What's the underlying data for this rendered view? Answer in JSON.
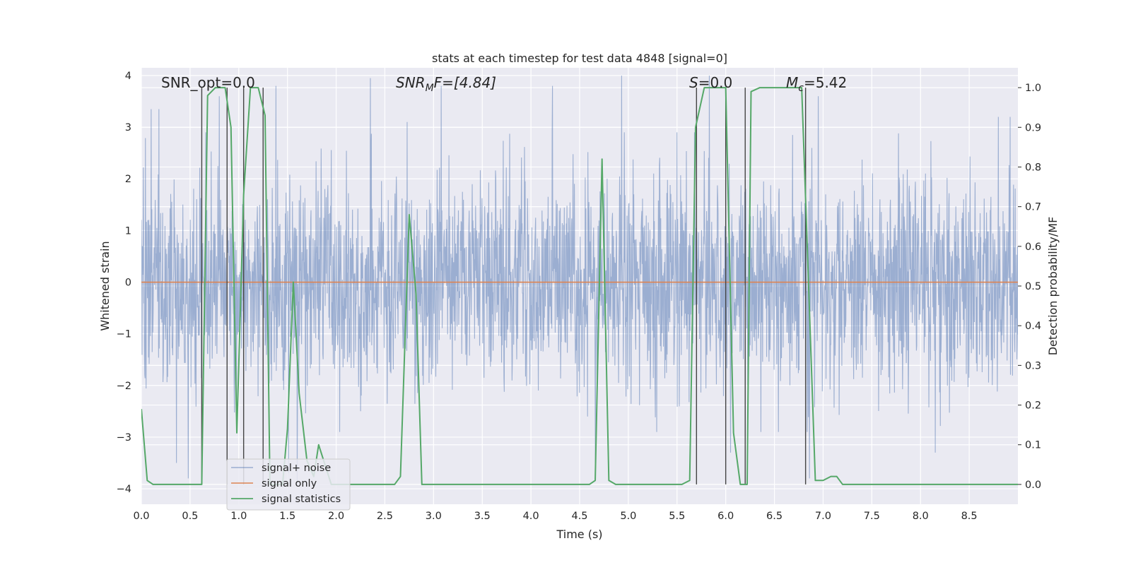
{
  "chart_data": {
    "type": "line",
    "title": "stats at each timestep for test data 4848 [signal=0]",
    "xlabel": "Time (s)",
    "ylabel": "Whitened strain",
    "y2label": "Detection probability/MF",
    "xlim": [
      0,
      9.0
    ],
    "ylim": [
      -4.3,
      4.15
    ],
    "y2lim": [
      -0.05,
      1.05
    ],
    "x_ticks": [
      0.0,
      0.5,
      1.0,
      1.5,
      2.0,
      2.5,
      3.0,
      3.5,
      4.0,
      4.5,
      5.0,
      5.5,
      6.0,
      6.5,
      7.0,
      7.5,
      8.0,
      8.5
    ],
    "x_tick_labels": [
      "0.0",
      "0.5",
      "1.0",
      "1.5",
      "2.0",
      "2.5",
      "3.0",
      "3.5",
      "4.0",
      "4.5",
      "5.0",
      "5.5",
      "6.0",
      "6.5",
      "7.0",
      "7.5",
      "8.0",
      "8.5"
    ],
    "y_ticks": [
      4,
      3,
      2,
      1,
      0,
      -1,
      -2,
      -3,
      -4
    ],
    "y_tick_labels": [
      "4",
      "3",
      "2",
      "1",
      "0",
      "−1",
      "−2",
      "−3",
      "−4"
    ],
    "y2_ticks": [
      1.0,
      0.9,
      0.8,
      0.7,
      0.6,
      0.5,
      0.4,
      0.3,
      0.2,
      0.1,
      0.0
    ],
    "y2_tick_labels": [
      "1.0",
      "0.9",
      "0.8",
      "0.7",
      "0.6",
      "0.5",
      "0.4",
      "0.3",
      "0.2",
      "0.1",
      "0.0"
    ],
    "grid": true,
    "legend_position": "lower-left",
    "annotations": {
      "snr_opt": "SNR_opt=0.0",
      "snr_mf_prefix": "SNR",
      "snr_mf_sub": "M",
      "snr_mf_suffix": "F=[4.84]",
      "s_prefix": "S",
      "s_suffix": "=0.0",
      "mc_prefix": "M",
      "mc_sub": "c",
      "mc_suffix": "=5.42"
    },
    "series": [
      {
        "name": "signal+ noise",
        "color": "#4c72b0",
        "alpha": 0.5,
        "kind": "noise",
        "amplitude_rms": 1.0,
        "annotated_peaks": [
          {
            "x": 0.1,
            "y": 3.35
          },
          {
            "x": 0.18,
            "y": 3.35
          },
          {
            "x": 0.36,
            "y": -3.5
          },
          {
            "x": 0.48,
            "y": -3.8
          },
          {
            "x": 0.8,
            "y": 3.6
          },
          {
            "x": 1.38,
            "y": 3.8
          },
          {
            "x": 1.51,
            "y": -3.7
          },
          {
            "x": 1.6,
            "y": -3.9
          },
          {
            "x": 2.35,
            "y": 3.95
          },
          {
            "x": 2.73,
            "y": 3.1
          },
          {
            "x": 3.08,
            "y": 3.8
          },
          {
            "x": 4.22,
            "y": 3.8
          },
          {
            "x": 4.66,
            "y": -3.5
          },
          {
            "x": 4.93,
            "y": 4.0
          },
          {
            "x": 5.83,
            "y": 4.0
          },
          {
            "x": 6.05,
            "y": -3.3
          },
          {
            "x": 6.86,
            "y": -3.8
          },
          {
            "x": 6.95,
            "y": 3.6
          },
          {
            "x": 8.15,
            "y": -3.3
          },
          {
            "x": 8.8,
            "y": 3.2
          },
          {
            "x": 8.92,
            "y": 3.2
          }
        ]
      },
      {
        "name": "signal only",
        "color": "#dd8452",
        "x": [
          0,
          9.0
        ],
        "y": [
          0,
          0
        ]
      },
      {
        "name": "signal statistics",
        "color": "#55a868",
        "axis": "right",
        "x": [
          0.0,
          0.06,
          0.12,
          0.62,
          0.68,
          0.76,
          0.86,
          0.92,
          0.98,
          1.05,
          1.12,
          1.2,
          1.27,
          1.32,
          1.4,
          1.45,
          1.5,
          1.56,
          1.62,
          1.7,
          1.77,
          1.82,
          1.95,
          2.6,
          2.66,
          2.75,
          2.82,
          2.88,
          2.95,
          3.6,
          3.75,
          4.6,
          4.66,
          4.73,
          4.8,
          4.87,
          5.0,
          5.55,
          5.63,
          5.69,
          5.78,
          6.0,
          6.08,
          6.15,
          6.22,
          6.26,
          6.35,
          6.78,
          6.83,
          6.92,
          7.0,
          7.08,
          7.14,
          7.2,
          7.35,
          9.0
        ],
        "y": [
          0.19,
          0.01,
          0.0,
          0.0,
          0.98,
          1.0,
          1.0,
          0.9,
          0.13,
          0.73,
          1.0,
          1.0,
          0.93,
          0.0,
          0.0,
          0.0,
          0.14,
          0.51,
          0.23,
          0.06,
          0.02,
          0.1,
          0.0,
          0.0,
          0.02,
          0.68,
          0.48,
          0.0,
          0.0,
          0.0,
          0.0,
          0.0,
          0.01,
          0.82,
          0.01,
          0.0,
          0.0,
          0.0,
          0.01,
          0.9,
          1.0,
          1.0,
          0.13,
          0.0,
          0.0,
          0.99,
          1.0,
          1.0,
          0.65,
          0.01,
          0.01,
          0.02,
          0.02,
          0.0,
          0.0,
          0.0
        ]
      }
    ],
    "vertical_lines": [
      0.62,
      0.88,
      1.05,
      1.25,
      5.7,
      6.0,
      6.2,
      6.82
    ]
  }
}
